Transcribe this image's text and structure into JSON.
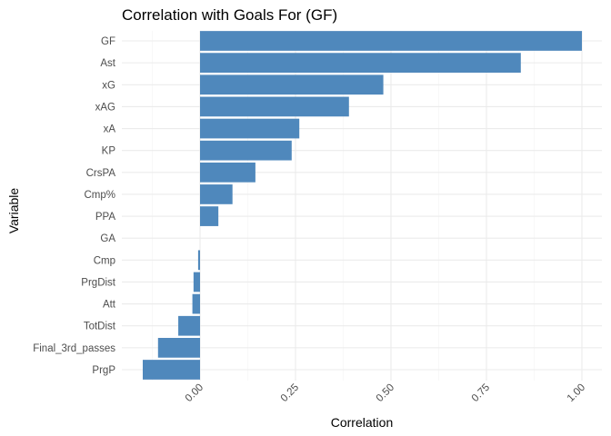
{
  "chart_data": {
    "type": "bar",
    "orientation": "horizontal",
    "title": "Correlation with Goals For (GF)",
    "xlabel": "Correlation",
    "ylabel": "Variable",
    "xlim": [
      -0.15,
      1.05
    ],
    "xticks": [
      0,
      0.25,
      0.5,
      0.75,
      1
    ],
    "xtick_labels": [
      "0.00",
      "0.25",
      "0.50",
      "0.75",
      "1.00"
    ],
    "categories": [
      "GF",
      "Ast",
      "xG",
      "xAG",
      "xA",
      "KP",
      "CrsPA",
      "Cmp%",
      "PPA",
      "GA",
      "Cmp",
      "PrgDist",
      "Att",
      "TotDist",
      "Final_3rd_passes",
      "PrgP"
    ],
    "values": [
      1.0,
      0.84,
      0.48,
      0.39,
      0.26,
      0.24,
      0.145,
      0.085,
      0.048,
      0.0,
      -0.005,
      -0.017,
      -0.02,
      -0.057,
      -0.11,
      -0.15
    ],
    "bar_color": "#4F88BC",
    "grid": true,
    "legend": "none"
  }
}
